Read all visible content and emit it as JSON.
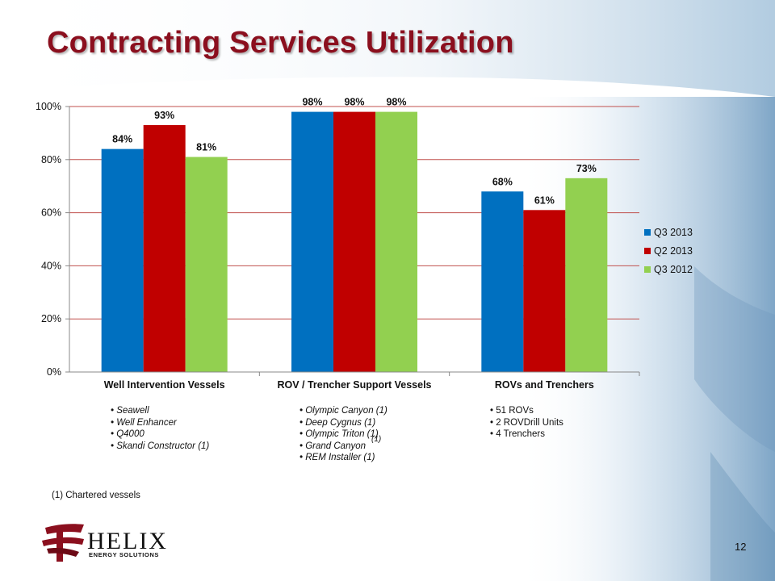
{
  "slide": {
    "title": "Contracting Services Utilization",
    "page_number": "12",
    "footnote": "(1) Chartered vessels",
    "superscript": "(1)"
  },
  "colors": {
    "title": "#8b0f1e",
    "gridline": "#c0504d"
  },
  "chart_data": {
    "type": "bar",
    "categories": [
      "Well Intervention Vessels",
      "ROV / Trencher Support Vessels",
      "ROVs and Trenchers"
    ],
    "series": [
      {
        "name": "Q3 2013",
        "color": "#0070c0",
        "values": [
          84,
          98,
          68
        ],
        "labels": [
          "84%",
          "98%",
          "68%"
        ]
      },
      {
        "name": "Q2 2013",
        "color": "#c00000",
        "values": [
          93,
          98,
          61
        ],
        "labels": [
          "93%",
          "98%",
          "61%"
        ]
      },
      {
        "name": "Q3 2012",
        "color": "#92d050",
        "values": [
          81,
          98,
          73
        ],
        "labels": [
          "81%",
          "98%",
          "73%"
        ]
      }
    ],
    "ylim": [
      0,
      100
    ],
    "yticks": [
      0,
      20,
      40,
      60,
      80,
      100
    ],
    "ytick_labels": [
      "0%",
      "20%",
      "40%",
      "60%",
      "80%",
      "100%"
    ],
    "grid": true,
    "legend_position": "right"
  },
  "category_notes": [
    {
      "style": "italic",
      "items": [
        "• Seawell",
        "• Well Enhancer",
        "• Q4000",
        "• Skandi Constructor (1)"
      ]
    },
    {
      "style": "italic",
      "items": [
        "• Olympic Canyon (1)",
        "• Deep Cygnus (1)",
        "• Olympic Triton (1)",
        "• Grand Canyon",
        "• REM Installer (1)"
      ]
    },
    {
      "style": "normal",
      "items": [
        "• 51 ROVs",
        "• 2 ROVDrill Units",
        "• 4 Trenchers"
      ]
    }
  ],
  "logo": {
    "name": "HELIX",
    "tagline": "ENERGY SOLUTIONS"
  }
}
